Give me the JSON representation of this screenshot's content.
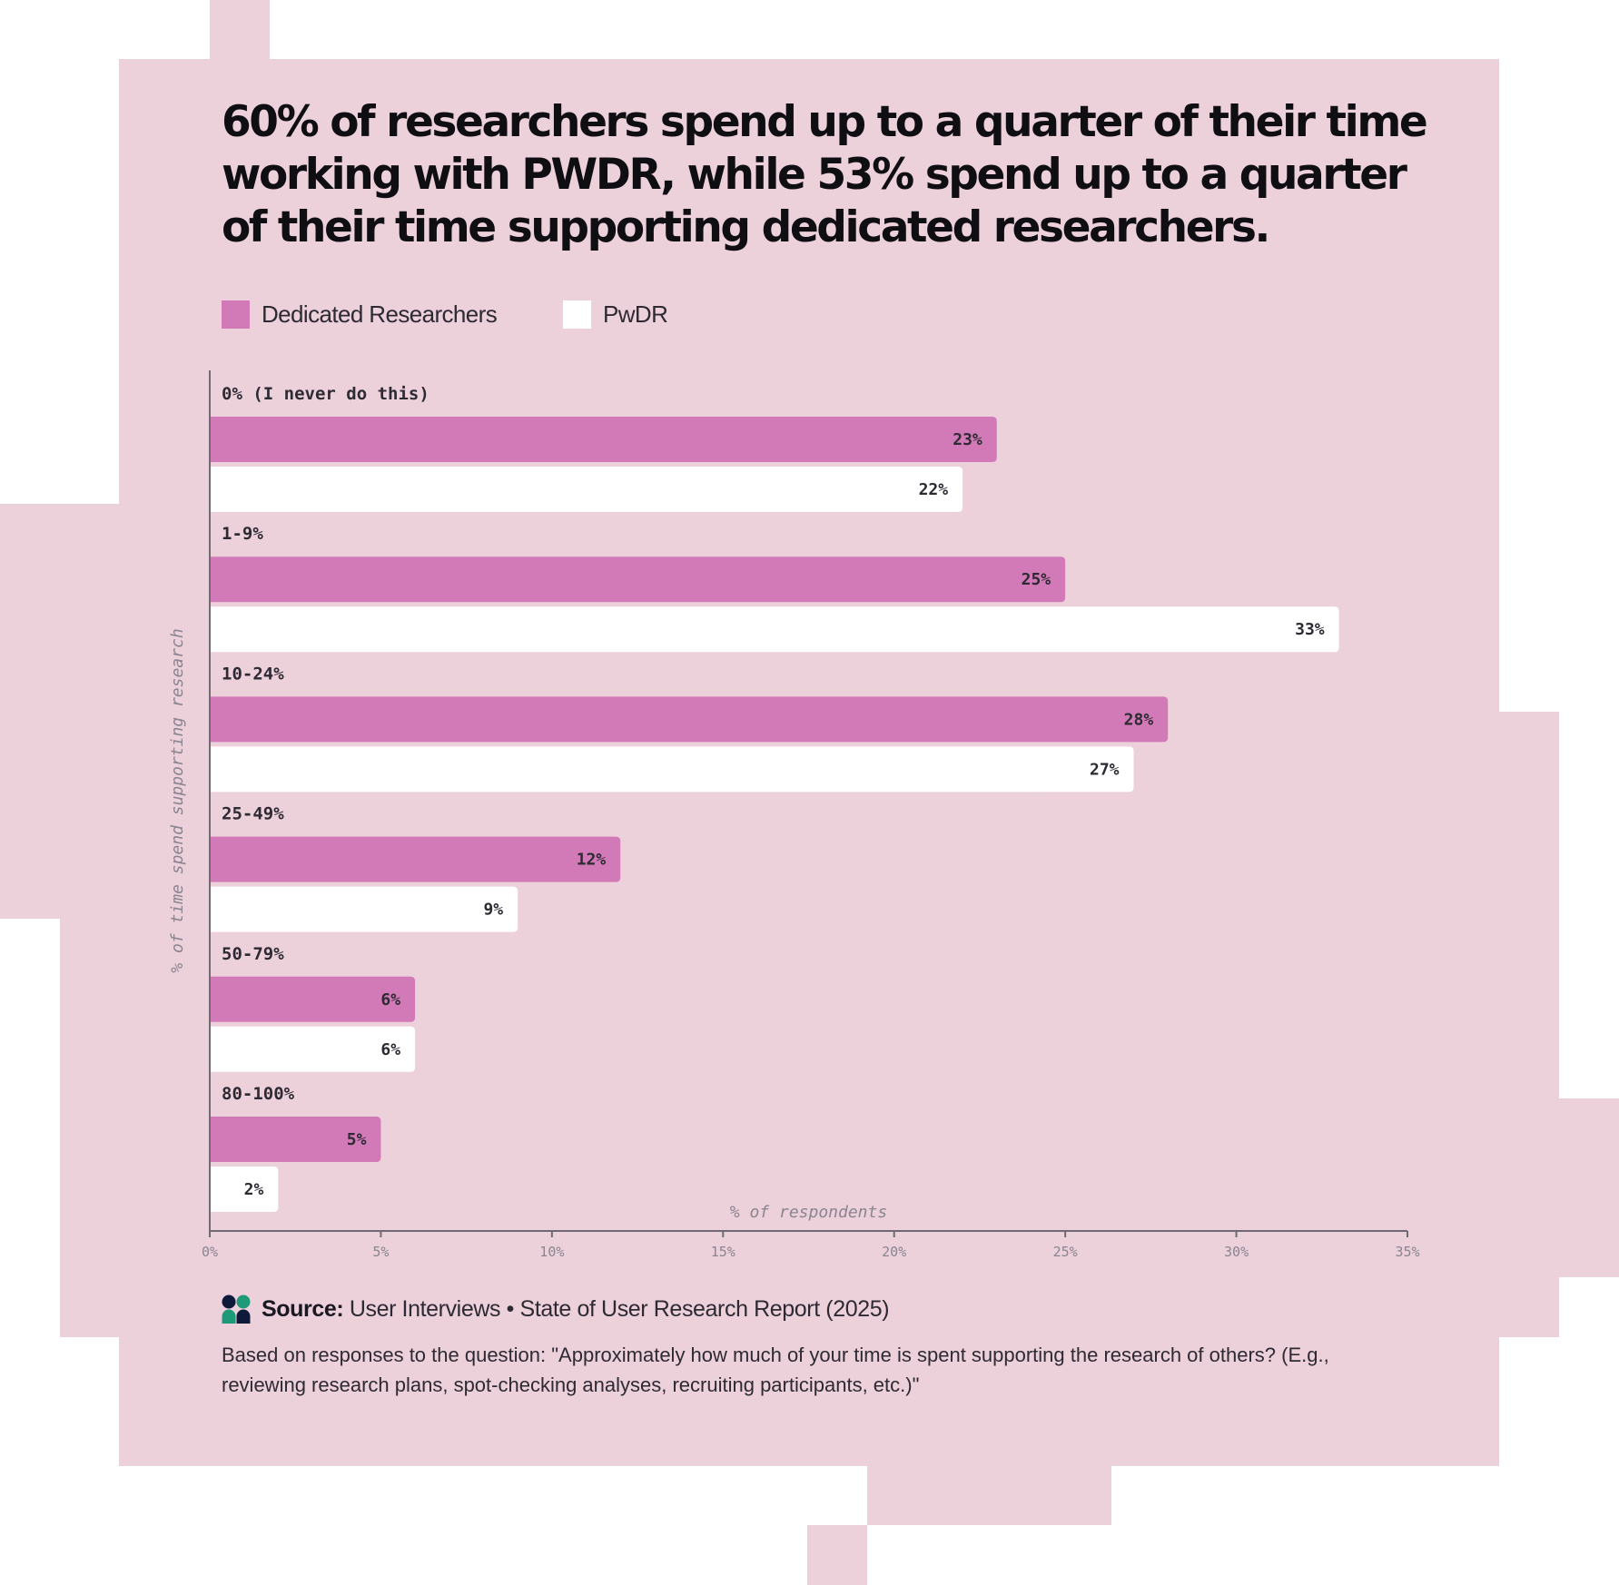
{
  "title": "60% of researchers spend up to a quarter of their time working with PWDR, while 53% spend up to a quarter of their time supporting dedicated researchers.",
  "legend": [
    {
      "label": "Dedicated Researchers",
      "color": "#d17ab7"
    },
    {
      "label": "PwDR",
      "color": "#ffffff"
    }
  ],
  "chart_data": {
    "type": "bar",
    "orientation": "horizontal",
    "title": "60% of researchers spend up to a quarter of their time working with PWDR, while 53% spend up to a quarter of their time supporting dedicated researchers.",
    "categories": [
      "0% (I never do this)",
      "1-9%",
      "10-24%",
      "25-49%",
      "50-79%",
      "80-100%"
    ],
    "series": [
      {
        "name": "Dedicated Researchers",
        "color": "#d17ab7",
        "values": [
          23,
          25,
          28,
          12,
          6,
          5
        ],
        "labels": [
          "23%",
          "25%",
          "28%",
          "12%",
          "6%",
          "5%"
        ]
      },
      {
        "name": "PwDR",
        "color": "#ffffff",
        "values": [
          22,
          33,
          27,
          9,
          6,
          2
        ],
        "labels": [
          "22%",
          "33%",
          "27%",
          "9%",
          "6%",
          "2%"
        ]
      }
    ],
    "xlabel": "% of respondents",
    "ylabel": "% of time spend supporting research",
    "xlim": [
      0,
      35
    ],
    "xticks": [
      0,
      5,
      10,
      15,
      20,
      25,
      30,
      35
    ],
    "xtick_labels": [
      "0%",
      "5%",
      "10%",
      "15%",
      "20%",
      "25%",
      "30%",
      "35%"
    ],
    "grid": false,
    "legend_position": "top-left"
  },
  "source": {
    "label": "Source:",
    "text": "User Interviews • State of User Research Report (2025)",
    "logo": "user-interviews-logo"
  },
  "footnote": "Based on responses to the question: \"Approximately how much of your time is spent supporting the research of others? (E.g., reviewing research plans, spot-checking analyses, recruiting participants, etc.)\"",
  "colors": {
    "background": "#ecd0da",
    "dark_text": "#0f0e12",
    "axis": "#7a7580"
  }
}
